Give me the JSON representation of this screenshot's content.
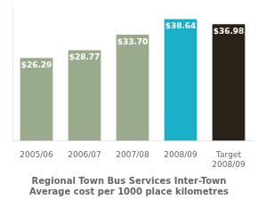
{
  "chart_data": {
    "type": "bar",
    "title": "Regional Town Bus Services Inter-Town\nAverage cost per 1000 place kilometres",
    "categories": [
      "2005/06",
      "2006/07",
      "2007/08",
      "2008/09",
      "Target\n2008/09"
    ],
    "values": [
      26.29,
      28.77,
      33.7,
      38.64,
      36.98
    ],
    "value_labels": [
      "$26.29",
      "$28.77",
      "$33.70",
      "$38.64",
      "$36.98"
    ],
    "colors": [
      "#9aaa8c",
      "#9aaa8c",
      "#9aaa8c",
      "#1ab0c8",
      "#2a2218"
    ],
    "ylim": [
      0,
      43
    ],
    "yticks": [],
    "grid": false,
    "data_labels": true,
    "tick_labels": "x"
  }
}
